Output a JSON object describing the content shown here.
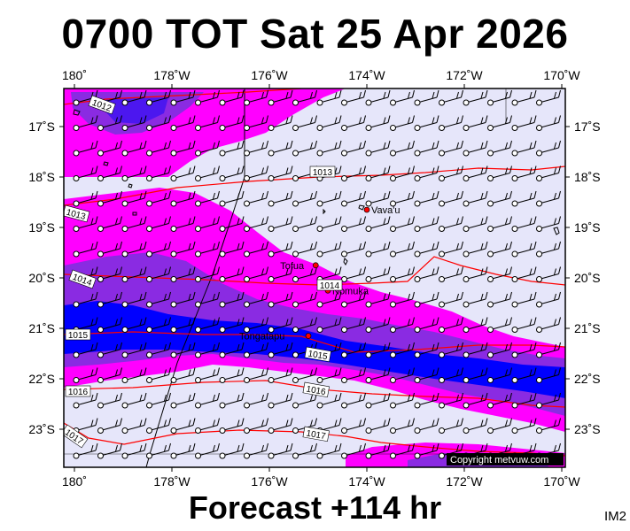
{
  "header": {
    "title": "0700 TOT Sat 25 Apr 2026"
  },
  "footer": {
    "forecast": "Forecast +114 hr",
    "product_code": "IM2"
  },
  "map": {
    "lon_labels": [
      "180˚",
      "178˚W",
      "176˚W",
      "174˚W",
      "172˚W",
      "170˚W"
    ],
    "lon_values": [
      180,
      178,
      176,
      174,
      172,
      170
    ],
    "lat_labels": [
      "17˚S",
      "18˚S",
      "19˚S",
      "20˚S",
      "21˚S",
      "22˚S",
      "23˚S"
    ],
    "lat_values": [
      17,
      18,
      19,
      20,
      21,
      22,
      23
    ],
    "places": [
      {
        "name": "Vava'u",
        "lon": 174.0,
        "lat": 18.65
      },
      {
        "name": "Tofua",
        "lon": 175.05,
        "lat": 19.75
      },
      {
        "name": "Nomuka",
        "lon": 174.8,
        "lat": 20.25
      },
      {
        "name": "Tongatapu",
        "lon": 175.2,
        "lat": 21.15
      }
    ],
    "isobar_labels": [
      "1012",
      "1013",
      "1013",
      "1014",
      "1014",
      "1015",
      "1015",
      "1016",
      "1016",
      "1017",
      "1017"
    ],
    "copyright": "Copyright metvuw.com",
    "colors": {
      "background": "#e6e6fa",
      "precip_light": "#ff00ff",
      "precip_medium": "#8a2be2",
      "precip_heavy": "#0000ff",
      "isobar": "#ff0000",
      "coast": "#000000"
    }
  }
}
